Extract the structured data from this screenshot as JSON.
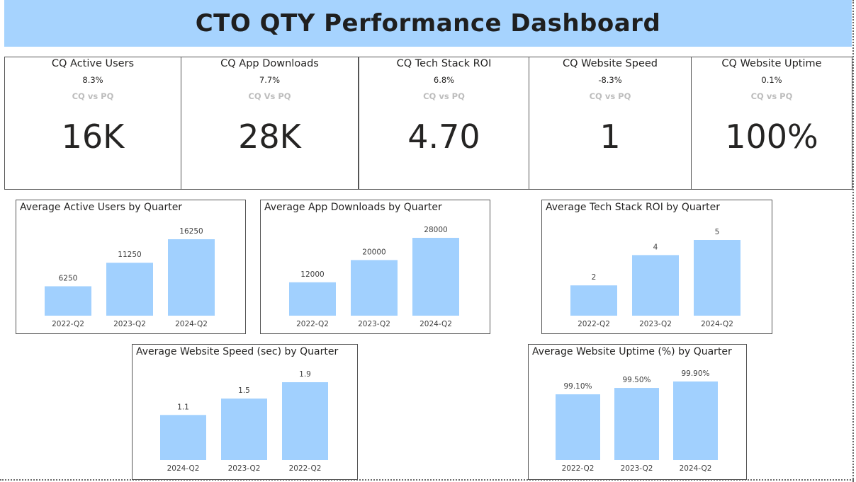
{
  "page_title": "CTO QTY Performance Dashboard",
  "colors": {
    "header_bg": "#a6d3fe",
    "bar": "#a1d0fe"
  },
  "kpis": [
    {
      "title": "CQ Active Users",
      "delta": "8.3%",
      "sub": "CQ vs PQ",
      "value": "16K"
    },
    {
      "title": "CQ App Downloads",
      "delta": "7.7%",
      "sub": "CQ Vs PQ",
      "value": "28K"
    },
    {
      "title": "CQ Tech Stack ROI",
      "delta": "6.8%",
      "sub": "CQ vs PQ",
      "value": "4.70"
    },
    {
      "title": "CQ Website Speed",
      "delta": "-8.3%",
      "sub": "CQ vs PQ",
      "value": "1"
    },
    {
      "title": "CQ Website Uptime",
      "delta": "0.1%",
      "sub": "CQ vs PQ",
      "value": "100%"
    }
  ],
  "chart_data": [
    {
      "type": "bar",
      "title": "Average Active Users by Quarter",
      "categories": [
        "2022-Q2",
        "2023-Q2",
        "2024-Q2"
      ],
      "values": [
        6250,
        11250,
        16250
      ],
      "data_labels": [
        "6250",
        "11250",
        "16250"
      ]
    },
    {
      "type": "bar",
      "title": "Average App Downloads by Quarter",
      "categories": [
        "2022-Q2",
        "2023-Q2",
        "2024-Q2"
      ],
      "values": [
        12000,
        20000,
        28000
      ],
      "data_labels": [
        "12000",
        "20000",
        "28000"
      ]
    },
    {
      "type": "bar",
      "title": "Average Tech Stack ROI by Quarter",
      "categories": [
        "2022-Q2",
        "2023-Q2",
        "2024-Q2"
      ],
      "values": [
        2,
        4,
        5
      ],
      "data_labels": [
        "2",
        "4",
        "5"
      ]
    },
    {
      "type": "bar",
      "title": "Average Website Speed (sec) by Quarter",
      "categories": [
        "2024-Q2",
        "2023-Q2",
        "2022-Q2"
      ],
      "values": [
        1.1,
        1.5,
        1.9
      ],
      "data_labels": [
        "1.1",
        "1.5",
        "1.9"
      ]
    },
    {
      "type": "bar",
      "title": "Average Website Uptime (%) by Quarter",
      "categories": [
        "2022-Q2",
        "2023-Q2",
        "2024-Q2"
      ],
      "values": [
        99.1,
        99.5,
        99.9
      ],
      "data_labels": [
        "99.10%",
        "99.50%",
        "99.90%"
      ]
    }
  ]
}
